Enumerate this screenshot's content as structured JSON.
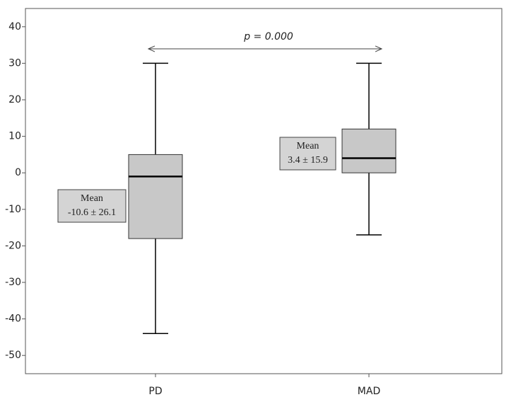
{
  "chart_data": {
    "type": "box",
    "categories": [
      "PD",
      "MAD"
    ],
    "boxes": [
      {
        "min": -44,
        "q1": -18,
        "median": -1,
        "q3": 5,
        "max": 30
      },
      {
        "min": -17,
        "q1": 0,
        "median": 4,
        "q3": 12,
        "max": 30
      }
    ],
    "mean_labels": [
      [
        "Mean",
        "-10.6 ± 26.1"
      ],
      [
        "Mean",
        "3.4 ± 15.9"
      ]
    ],
    "comparison": "p = 0.000",
    "color": "#c8c8c8",
    "ylim": [
      -55,
      45
    ],
    "yticks": [
      40,
      30,
      20,
      10,
      0,
      -10,
      -20,
      -30,
      -40,
      -50
    ]
  }
}
